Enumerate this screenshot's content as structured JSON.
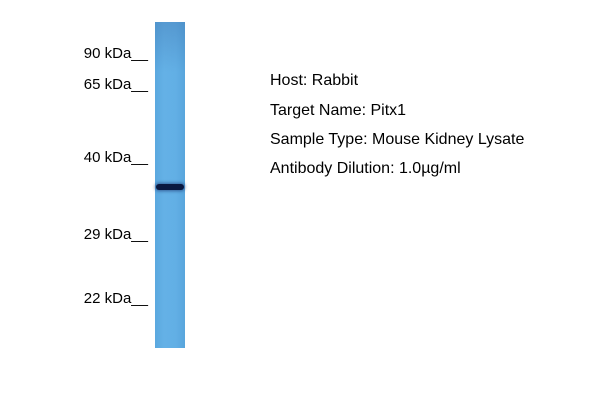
{
  "markers": [
    {
      "label": "90 kDa__"
    },
    {
      "label": "65 kDa__"
    },
    {
      "label": "40 kDa__"
    },
    {
      "label": "29 kDa__"
    },
    {
      "label": "22 kDa__"
    }
  ],
  "lane": {
    "color": "#62afe5",
    "band_color": "#0a1840"
  },
  "info": {
    "host": "Host: Rabbit",
    "target": "Target Name: Pitx1",
    "sample": "Sample Type: Mouse Kidney Lysate",
    "dilution": "Antibody Dilution: 1.0µg/ml"
  }
}
